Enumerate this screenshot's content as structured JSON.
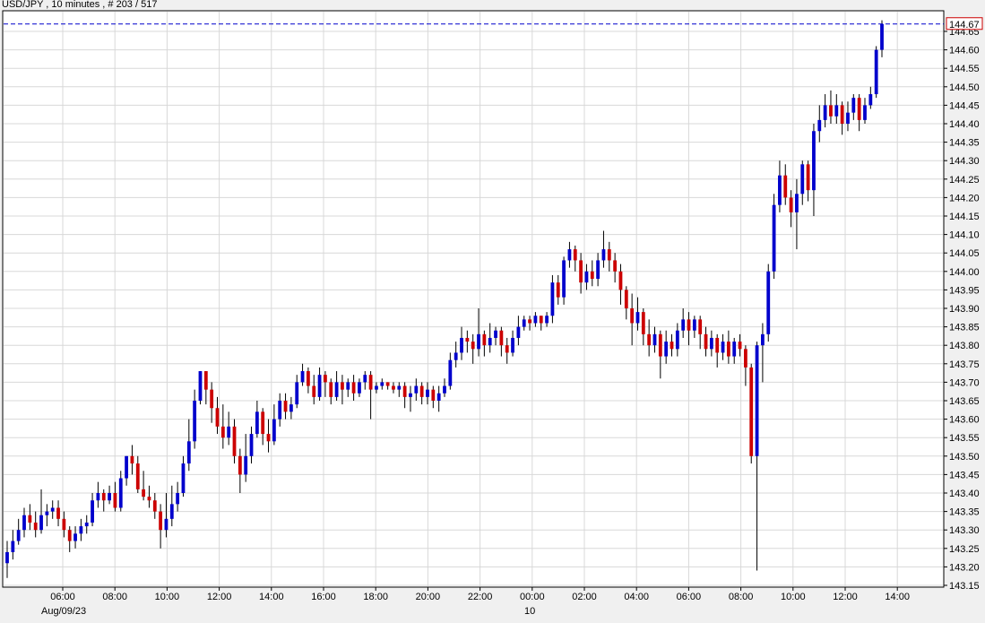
{
  "chart_data": {
    "type": "candlestick",
    "title": "USD/JPY , 10 minutes , # 203 / 517",
    "last_price_label": "144.67",
    "last_price": 144.67,
    "date_labels": [
      "Aug/09/23",
      "10"
    ],
    "y_ticks": [
      "143.15",
      "143.20",
      "143.25",
      "143.30",
      "143.35",
      "143.40",
      "143.45",
      "143.50",
      "143.55",
      "143.60",
      "143.65",
      "143.70",
      "143.75",
      "143.80",
      "143.85",
      "143.90",
      "143.95",
      "144.00",
      "144.05",
      "144.10",
      "144.15",
      "144.20",
      "144.25",
      "144.30",
      "144.35",
      "144.40",
      "144.45",
      "144.50",
      "144.55",
      "144.60",
      "144.65"
    ],
    "x_ticks": [
      "06:00",
      "08:00",
      "10:00",
      "12:00",
      "14:00",
      "16:00",
      "18:00",
      "20:00",
      "22:00",
      "00:00",
      "02:00",
      "04:00",
      "06:00",
      "08:00",
      "10:00",
      "12:00",
      "14:00"
    ],
    "ylim": [
      143.15,
      144.7
    ],
    "grid": true,
    "colors": {
      "up": "#0000cc",
      "down": "#cc0000",
      "grid": "#d8d8d8",
      "background": "#ffffff",
      "last_price_line": "#0000cc",
      "last_price_box": "#cc0000"
    },
    "candles": [
      [
        143.21,
        143.24,
        143.17,
        143.27
      ],
      [
        143.24,
        143.27,
        143.22,
        143.3
      ],
      [
        143.27,
        143.3,
        143.26,
        143.33
      ],
      [
        143.3,
        143.34,
        143.28,
        143.36
      ],
      [
        143.34,
        143.32,
        143.3,
        143.37
      ],
      [
        143.32,
        143.3,
        143.28,
        143.35
      ],
      [
        143.3,
        143.34,
        143.29,
        143.41
      ],
      [
        143.34,
        143.35,
        143.31,
        143.37
      ],
      [
        143.35,
        143.36,
        143.33,
        143.38
      ],
      [
        143.36,
        143.33,
        143.31,
        143.38
      ],
      [
        143.33,
        143.3,
        143.28,
        143.35
      ],
      [
        143.3,
        143.27,
        143.24,
        143.31
      ],
      [
        143.27,
        143.29,
        143.25,
        143.31
      ],
      [
        143.29,
        143.31,
        143.27,
        143.33
      ],
      [
        143.31,
        143.32,
        143.29,
        143.34
      ],
      [
        143.32,
        143.38,
        143.31,
        143.4
      ],
      [
        143.38,
        143.4,
        143.36,
        143.43
      ],
      [
        143.4,
        143.38,
        143.35,
        143.41
      ],
      [
        143.38,
        143.4,
        143.37,
        143.42
      ],
      [
        143.4,
        143.36,
        143.35,
        143.43
      ],
      [
        143.36,
        143.44,
        143.35,
        143.46
      ],
      [
        143.44,
        143.5,
        143.42,
        143.5
      ],
      [
        143.5,
        143.48,
        143.45,
        143.53
      ],
      [
        143.48,
        143.41,
        143.4,
        143.5
      ],
      [
        143.41,
        143.39,
        143.38,
        143.46
      ],
      [
        143.39,
        143.38,
        143.36,
        143.42
      ],
      [
        143.38,
        143.35,
        143.33,
        143.4
      ],
      [
        143.35,
        143.3,
        143.25,
        143.37
      ],
      [
        143.3,
        143.33,
        143.28,
        143.4
      ],
      [
        143.33,
        143.37,
        143.31,
        143.42
      ],
      [
        143.37,
        143.4,
        143.35,
        143.43
      ],
      [
        143.4,
        143.48,
        143.39,
        143.5
      ],
      [
        143.48,
        143.54,
        143.46,
        143.6
      ],
      [
        143.54,
        143.65,
        143.52,
        143.68
      ],
      [
        143.65,
        143.73,
        143.64,
        143.73
      ],
      [
        143.73,
        143.68,
        143.64,
        143.73
      ],
      [
        143.68,
        143.63,
        143.59,
        143.7
      ],
      [
        143.63,
        143.58,
        143.56,
        143.66
      ],
      [
        143.58,
        143.55,
        143.52,
        143.64
      ],
      [
        143.55,
        143.58,
        143.53,
        143.62
      ],
      [
        143.58,
        143.5,
        143.48,
        143.6
      ],
      [
        143.5,
        143.45,
        143.4,
        143.52
      ],
      [
        143.45,
        143.5,
        143.43,
        143.56
      ],
      [
        143.5,
        143.56,
        143.48,
        143.58
      ],
      [
        143.56,
        143.62,
        143.55,
        143.65
      ],
      [
        143.62,
        143.56,
        143.53,
        143.63
      ],
      [
        143.56,
        143.54,
        143.51,
        143.6
      ],
      [
        143.54,
        143.6,
        143.53,
        143.64
      ],
      [
        143.6,
        143.65,
        143.58,
        143.67
      ],
      [
        143.65,
        143.62,
        143.6,
        143.67
      ],
      [
        143.62,
        143.64,
        143.6,
        143.66
      ],
      [
        143.64,
        143.7,
        143.63,
        143.72
      ],
      [
        143.7,
        143.73,
        143.69,
        143.75
      ],
      [
        143.73,
        143.69,
        143.67,
        143.74
      ],
      [
        143.69,
        143.66,
        143.64,
        143.72
      ],
      [
        143.66,
        143.72,
        143.65,
        143.74
      ],
      [
        143.72,
        143.7,
        143.66,
        143.73
      ],
      [
        143.7,
        143.66,
        143.64,
        143.71
      ],
      [
        143.66,
        143.7,
        143.65,
        143.73
      ],
      [
        143.7,
        143.68,
        143.64,
        143.72
      ],
      [
        143.68,
        143.7,
        143.66,
        143.71
      ],
      [
        143.7,
        143.67,
        143.65,
        143.72
      ],
      [
        143.67,
        143.7,
        143.66,
        143.71
      ],
      [
        143.7,
        143.72,
        143.68,
        143.73
      ],
      [
        143.72,
        143.68,
        143.6,
        143.73
      ],
      [
        143.68,
        143.69,
        143.67,
        143.7
      ],
      [
        143.69,
        143.7,
        143.68,
        143.71
      ],
      [
        143.7,
        143.69,
        143.68,
        143.7
      ],
      [
        143.69,
        143.68,
        143.67,
        143.7
      ],
      [
        143.68,
        143.69,
        143.66,
        143.7
      ],
      [
        143.69,
        143.66,
        143.63,
        143.7
      ],
      [
        143.66,
        143.67,
        143.62,
        143.69
      ],
      [
        143.67,
        143.69,
        143.65,
        143.71
      ],
      [
        143.69,
        143.66,
        143.64,
        143.7
      ],
      [
        143.66,
        143.68,
        143.64,
        143.7
      ],
      [
        143.68,
        143.65,
        143.63,
        143.69
      ],
      [
        143.65,
        143.67,
        143.62,
        143.69
      ],
      [
        143.67,
        143.69,
        143.66,
        143.71
      ],
      [
        143.69,
        143.76,
        143.68,
        143.78
      ],
      [
        143.76,
        143.78,
        143.74,
        143.81
      ],
      [
        143.78,
        143.82,
        143.76,
        143.85
      ],
      [
        143.82,
        143.81,
        143.78,
        143.84
      ],
      [
        143.81,
        143.79,
        143.75,
        143.83
      ],
      [
        143.79,
        143.83,
        143.77,
        143.9
      ],
      [
        143.83,
        143.8,
        143.77,
        143.84
      ],
      [
        143.8,
        143.82,
        143.78,
        143.86
      ],
      [
        143.82,
        143.84,
        143.8,
        143.85
      ],
      [
        143.84,
        143.8,
        143.77,
        143.85
      ],
      [
        143.8,
        143.78,
        143.75,
        143.82
      ],
      [
        143.78,
        143.82,
        143.77,
        143.84
      ],
      [
        143.82,
        143.85,
        143.8,
        143.88
      ],
      [
        143.85,
        143.87,
        143.84,
        143.88
      ],
      [
        143.87,
        143.86,
        143.84,
        143.88
      ],
      [
        143.86,
        143.88,
        143.85,
        143.89
      ],
      [
        143.88,
        143.86,
        143.84,
        143.88
      ],
      [
        143.86,
        143.88,
        143.85,
        143.89
      ],
      [
        143.88,
        143.97,
        143.86,
        143.99
      ],
      [
        143.97,
        143.93,
        143.91,
        143.99
      ],
      [
        143.93,
        144.03,
        143.91,
        144.04
      ],
      [
        144.03,
        144.06,
        144.01,
        144.08
      ],
      [
        144.06,
        144.03,
        144.0,
        144.07
      ],
      [
        144.03,
        143.97,
        143.94,
        144.05
      ],
      [
        143.97,
        144.0,
        143.95,
        144.02
      ],
      [
        144.0,
        143.98,
        143.96,
        144.03
      ],
      [
        143.98,
        144.03,
        143.96,
        144.05
      ],
      [
        144.03,
        144.06,
        144.01,
        144.11
      ],
      [
        144.06,
        144.03,
        144.0,
        144.08
      ],
      [
        144.03,
        144.0,
        143.97,
        144.05
      ],
      [
        144.0,
        143.95,
        143.91,
        144.02
      ],
      [
        143.95,
        143.9,
        143.87,
        143.96
      ],
      [
        143.9,
        143.86,
        143.8,
        143.94
      ],
      [
        143.86,
        143.89,
        143.84,
        143.93
      ],
      [
        143.89,
        143.83,
        143.8,
        143.9
      ],
      [
        143.83,
        143.8,
        143.77,
        143.87
      ],
      [
        143.8,
        143.83,
        143.78,
        143.85
      ],
      [
        143.83,
        143.77,
        143.71,
        143.84
      ],
      [
        143.77,
        143.81,
        143.75,
        143.84
      ],
      [
        143.81,
        143.79,
        143.77,
        143.83
      ],
      [
        143.79,
        143.84,
        143.77,
        143.86
      ],
      [
        143.84,
        143.87,
        143.82,
        143.9
      ],
      [
        143.87,
        143.84,
        143.8,
        143.89
      ],
      [
        143.84,
        143.87,
        143.82,
        143.88
      ],
      [
        143.87,
        143.83,
        143.79,
        143.88
      ],
      [
        143.83,
        143.79,
        143.77,
        143.85
      ],
      [
        143.79,
        143.82,
        143.77,
        143.84
      ],
      [
        143.82,
        143.78,
        143.74,
        143.83
      ],
      [
        143.78,
        143.81,
        143.76,
        143.83
      ],
      [
        143.81,
        143.77,
        143.75,
        143.84
      ],
      [
        143.77,
        143.81,
        143.75,
        143.82
      ],
      [
        143.81,
        143.79,
        143.77,
        143.83
      ],
      [
        143.79,
        143.74,
        143.69,
        143.8
      ],
      [
        143.74,
        143.5,
        143.48,
        143.75
      ],
      [
        143.5,
        143.8,
        143.19,
        143.81
      ],
      [
        143.8,
        143.83,
        143.7,
        143.86
      ],
      [
        143.83,
        144.0,
        143.81,
        144.02
      ],
      [
        144.0,
        144.18,
        143.98,
        144.21
      ],
      [
        144.18,
        144.26,
        144.16,
        144.3
      ],
      [
        144.26,
        144.2,
        144.18,
        144.29
      ],
      [
        144.2,
        144.16,
        144.12,
        144.22
      ],
      [
        144.16,
        144.21,
        144.06,
        144.25
      ],
      [
        144.21,
        144.29,
        144.18,
        144.3
      ],
      [
        144.29,
        144.22,
        144.19,
        144.3
      ],
      [
        144.22,
        144.38,
        144.15,
        144.4
      ],
      [
        144.38,
        144.41,
        144.35,
        144.45
      ],
      [
        144.41,
        144.45,
        144.39,
        144.48
      ],
      [
        144.45,
        144.42,
        144.4,
        144.49
      ],
      [
        144.42,
        144.45,
        144.4,
        144.48
      ],
      [
        144.45,
        144.4,
        144.37,
        144.46
      ],
      [
        144.4,
        144.43,
        144.38,
        144.46
      ],
      [
        144.43,
        144.47,
        144.41,
        144.48
      ],
      [
        144.47,
        144.41,
        144.38,
        144.48
      ],
      [
        144.41,
        144.45,
        144.4,
        144.47
      ],
      [
        144.45,
        144.48,
        144.44,
        144.5
      ],
      [
        144.48,
        144.6,
        144.47,
        144.61
      ],
      [
        144.6,
        144.67,
        144.58,
        144.68
      ]
    ]
  }
}
